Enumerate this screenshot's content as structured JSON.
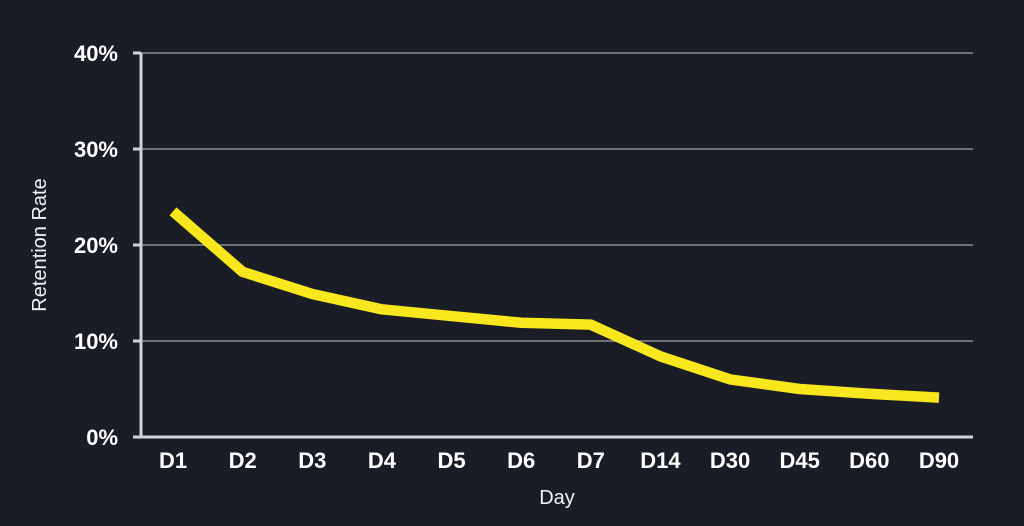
{
  "window": {
    "background": "#1a1d26"
  },
  "chart_data": {
    "type": "line",
    "title": "",
    "xlabel": "Day",
    "ylabel": "Retention Rate",
    "categories": [
      "D1",
      "D2",
      "D3",
      "D4",
      "D5",
      "D6",
      "D7",
      "D14",
      "D30",
      "D45",
      "D60",
      "D90"
    ],
    "series": [
      {
        "name": "Retention Rate",
        "values": [
          23.5,
          17.2,
          14.9,
          13.3,
          12.6,
          11.9,
          11.7,
          8.4,
          6.0,
          5.0,
          4.5,
          4.1
        ]
      }
    ],
    "ylim": [
      0,
      40
    ],
    "yticks": [
      0,
      10,
      20,
      30,
      40
    ],
    "ytick_labels": [
      "0%",
      "10%",
      "20%",
      "30%",
      "40%"
    ],
    "grid": "horizontal-only",
    "legend": "none",
    "colors": {
      "line": "#f8e71c",
      "grid": "#6f7277",
      "axis": "#d2d4d9",
      "text": "#ffffff",
      "background": "#1a1d26"
    }
  }
}
